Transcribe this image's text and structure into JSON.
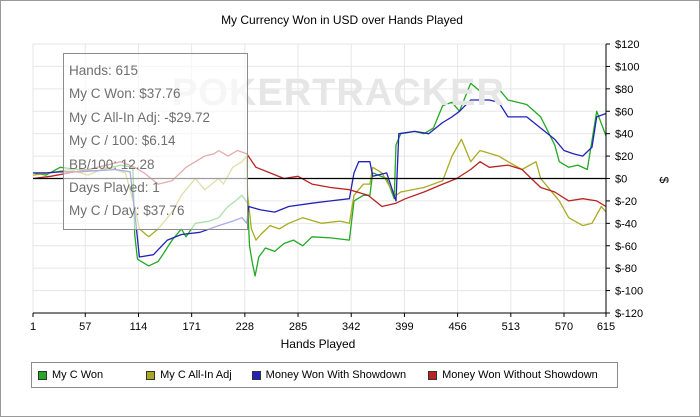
{
  "watermark": "POKERTRACKER",
  "tooltip": [
    "Hands: 615",
    "My C Won: $37.76",
    "My C All-In Adj: -$29.72",
    "My C / 100: $6.14",
    "BB/100: 12.28",
    "Days Played: 1",
    "My C / Day: $37.76"
  ],
  "chart_data": {
    "type": "line",
    "title": "My Currency Won in USD over Hands Played",
    "xlabel": "Hands Played",
    "ylabel": "$",
    "xlim": [
      1,
      615
    ],
    "ylim": [
      -120,
      120
    ],
    "x_ticks": [
      1,
      57,
      114,
      171,
      228,
      285,
      342,
      399,
      456,
      513,
      570,
      615
    ],
    "y_ticks": [
      120,
      100,
      80,
      60,
      40,
      20,
      0,
      -20,
      -40,
      -60,
      -80,
      -100,
      -120
    ],
    "y_tick_labels": [
      "$120",
      "$100",
      "$80",
      "$60",
      "$40",
      "$20",
      "$0",
      "$-20",
      "$-40",
      "$-60",
      "$-80",
      "$-100",
      "$-120"
    ],
    "grid": true,
    "legend_position": "bottom",
    "series": [
      {
        "name": "My C Won",
        "color": "#22aa22",
        "points": [
          [
            1,
            5
          ],
          [
            15,
            3
          ],
          [
            30,
            10
          ],
          [
            50,
            8
          ],
          [
            70,
            7
          ],
          [
            95,
            12
          ],
          [
            108,
            10
          ],
          [
            110,
            -50
          ],
          [
            113,
            -72
          ],
          [
            125,
            -78
          ],
          [
            135,
            -74
          ],
          [
            140,
            -68
          ],
          [
            150,
            -55
          ],
          [
            160,
            -45
          ],
          [
            165,
            -52
          ],
          [
            175,
            -40
          ],
          [
            190,
            -38
          ],
          [
            200,
            -35
          ],
          [
            210,
            -25
          ],
          [
            218,
            -20
          ],
          [
            225,
            -15
          ],
          [
            231,
            -22
          ],
          [
            233,
            -60
          ],
          [
            236,
            -75
          ],
          [
            239,
            -87
          ],
          [
            243,
            -70
          ],
          [
            250,
            -62
          ],
          [
            260,
            -65
          ],
          [
            270,
            -58
          ],
          [
            280,
            -55
          ],
          [
            290,
            -60
          ],
          [
            300,
            -52
          ],
          [
            320,
            -53
          ],
          [
            340,
            -55
          ],
          [
            345,
            -20
          ],
          [
            355,
            -15
          ],
          [
            362,
            -15
          ],
          [
            365,
            5
          ],
          [
            380,
            0
          ],
          [
            388,
            -18
          ],
          [
            390,
            30
          ],
          [
            395,
            40
          ],
          [
            410,
            42
          ],
          [
            420,
            40
          ],
          [
            430,
            45
          ],
          [
            440,
            65
          ],
          [
            450,
            68
          ],
          [
            458,
            60
          ],
          [
            470,
            85
          ],
          [
            480,
            78
          ],
          [
            490,
            76
          ],
          [
            500,
            80
          ],
          [
            510,
            70
          ],
          [
            530,
            66
          ],
          [
            545,
            55
          ],
          [
            560,
            30
          ],
          [
            565,
            15
          ],
          [
            575,
            10
          ],
          [
            585,
            12
          ],
          [
            595,
            8
          ],
          [
            605,
            60
          ],
          [
            615,
            38
          ]
        ]
      },
      {
        "name": "My C All-In Adj",
        "color": "#aaaa22",
        "points": [
          [
            1,
            3
          ],
          [
            20,
            5
          ],
          [
            40,
            8
          ],
          [
            60,
            3
          ],
          [
            80,
            10
          ],
          [
            100,
            5
          ],
          [
            110,
            -25
          ],
          [
            115,
            -45
          ],
          [
            125,
            -52
          ],
          [
            135,
            -45
          ],
          [
            150,
            -30
          ],
          [
            160,
            -15
          ],
          [
            170,
            -5
          ],
          [
            175,
            0
          ],
          [
            185,
            -10
          ],
          [
            200,
            0
          ],
          [
            205,
            -5
          ],
          [
            215,
            10
          ],
          [
            225,
            15
          ],
          [
            230,
            20
          ],
          [
            231,
            -15
          ],
          [
            235,
            -45
          ],
          [
            240,
            -55
          ],
          [
            245,
            -50
          ],
          [
            255,
            -42
          ],
          [
            265,
            -45
          ],
          [
            275,
            -40
          ],
          [
            290,
            -35
          ],
          [
            310,
            -40
          ],
          [
            330,
            -38
          ],
          [
            340,
            -40
          ],
          [
            345,
            -15
          ],
          [
            355,
            -5
          ],
          [
            362,
            -5
          ],
          [
            365,
            10
          ],
          [
            375,
            5
          ],
          [
            385,
            -10
          ],
          [
            390,
            -15
          ],
          [
            395,
            -12
          ],
          [
            420,
            -8
          ],
          [
            440,
            -2
          ],
          [
            450,
            20
          ],
          [
            460,
            35
          ],
          [
            470,
            15
          ],
          [
            480,
            25
          ],
          [
            500,
            20
          ],
          [
            510,
            15
          ],
          [
            525,
            8
          ],
          [
            540,
            15
          ],
          [
            545,
            0
          ],
          [
            555,
            -10
          ],
          [
            565,
            -20
          ],
          [
            575,
            -35
          ],
          [
            590,
            -42
          ],
          [
            600,
            -40
          ],
          [
            610,
            -25
          ],
          [
            615,
            -30
          ]
        ]
      },
      {
        "name": "Money Won With Showdown",
        "color": "#2222bb",
        "points": [
          [
            1,
            5
          ],
          [
            15,
            5
          ],
          [
            30,
            6
          ],
          [
            50,
            6
          ],
          [
            70,
            7
          ],
          [
            90,
            8
          ],
          [
            105,
            6
          ],
          [
            110,
            -30
          ],
          [
            115,
            -70
          ],
          [
            130,
            -68
          ],
          [
            145,
            -55
          ],
          [
            160,
            -50
          ],
          [
            180,
            -48
          ],
          [
            200,
            -42
          ],
          [
            215,
            -38
          ],
          [
            225,
            -35
          ],
          [
            230,
            -40
          ],
          [
            232,
            -25
          ],
          [
            245,
            -28
          ],
          [
            260,
            -30
          ],
          [
            275,
            -25
          ],
          [
            300,
            -22
          ],
          [
            320,
            -20
          ],
          [
            340,
            -18
          ],
          [
            345,
            5
          ],
          [
            350,
            15
          ],
          [
            362,
            15
          ],
          [
            365,
            2
          ],
          [
            380,
            5
          ],
          [
            390,
            -20
          ],
          [
            393,
            40
          ],
          [
            410,
            42
          ],
          [
            425,
            40
          ],
          [
            440,
            50
          ],
          [
            450,
            55
          ],
          [
            458,
            60
          ],
          [
            470,
            70
          ],
          [
            490,
            70
          ],
          [
            500,
            68
          ],
          [
            510,
            55
          ],
          [
            530,
            55
          ],
          [
            545,
            45
          ],
          [
            560,
            35
          ],
          [
            570,
            25
          ],
          [
            580,
            22
          ],
          [
            590,
            20
          ],
          [
            600,
            28
          ],
          [
            605,
            55
          ],
          [
            615,
            58
          ]
        ]
      },
      {
        "name": "Money Won Without Showdown",
        "color": "#bb2222",
        "points": [
          [
            1,
            0
          ],
          [
            20,
            2
          ],
          [
            40,
            5
          ],
          [
            60,
            8
          ],
          [
            80,
            12
          ],
          [
            95,
            15
          ],
          [
            110,
            10
          ],
          [
            120,
            5
          ],
          [
            135,
            -5
          ],
          [
            150,
            -2
          ],
          [
            165,
            10
          ],
          [
            175,
            15
          ],
          [
            185,
            20
          ],
          [
            195,
            22
          ],
          [
            200,
            25
          ],
          [
            210,
            20
          ],
          [
            220,
            25
          ],
          [
            230,
            22
          ],
          [
            240,
            10
          ],
          [
            255,
            5
          ],
          [
            270,
            0
          ],
          [
            285,
            2
          ],
          [
            300,
            -5
          ],
          [
            320,
            -8
          ],
          [
            340,
            -10
          ],
          [
            360,
            -15
          ],
          [
            375,
            -25
          ],
          [
            390,
            -22
          ],
          [
            400,
            -18
          ],
          [
            420,
            -12
          ],
          [
            440,
            -5
          ],
          [
            455,
            0
          ],
          [
            470,
            8
          ],
          [
            480,
            15
          ],
          [
            490,
            10
          ],
          [
            510,
            12
          ],
          [
            525,
            8
          ],
          [
            535,
            0
          ],
          [
            545,
            -8
          ],
          [
            560,
            -12
          ],
          [
            575,
            -20
          ],
          [
            590,
            -18
          ],
          [
            605,
            -20
          ],
          [
            615,
            -25
          ]
        ]
      }
    ]
  }
}
